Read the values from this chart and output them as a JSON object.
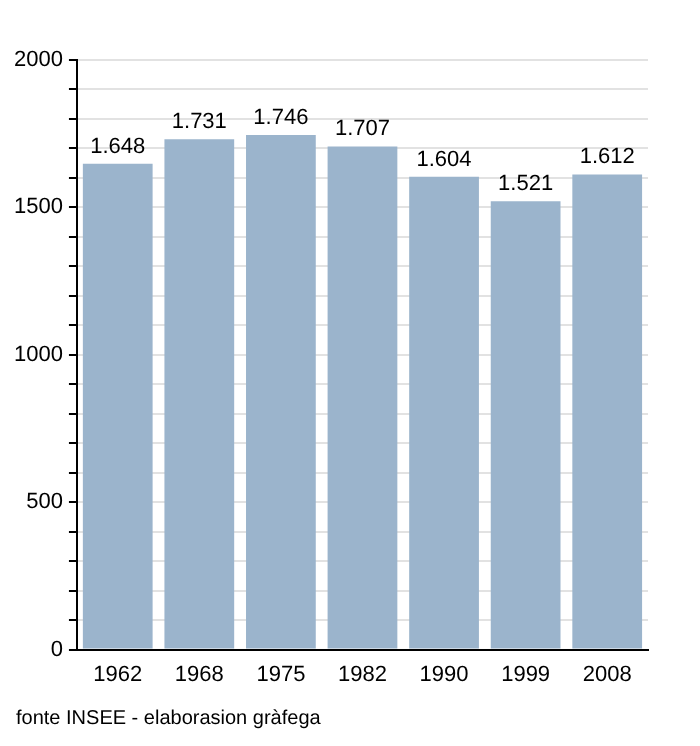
{
  "chart_data": {
    "type": "bar",
    "categories": [
      "1962",
      "1968",
      "1975",
      "1982",
      "1990",
      "1999",
      "2008"
    ],
    "values": [
      1648,
      1731,
      1746,
      1707,
      1604,
      1521,
      1612
    ],
    "value_labels": [
      "1.648",
      "1.731",
      "1.746",
      "1.707",
      "1.604",
      "1.521",
      "1.612"
    ],
    "color": "#9bb4cc",
    "ylim": [
      0,
      2000
    ],
    "yticks": [
      0,
      {
        "value": 100,
        "label": null
      },
      {
        "value": 200,
        "label": null
      },
      {
        "value": 300,
        "label": null
      },
      {
        "value": 400,
        "label": null
      },
      500,
      {
        "value": 600,
        "label": null
      },
      {
        "value": 700,
        "label": null
      },
      {
        "value": 800,
        "label": null
      },
      {
        "value": 900,
        "label": null
      },
      1000,
      {
        "value": 1100,
        "label": null
      },
      {
        "value": 1200,
        "label": null
      },
      {
        "value": 1300,
        "label": null
      },
      {
        "value": 1400,
        "label": null
      },
      1500,
      {
        "value": 1600,
        "label": null
      },
      {
        "value": 1700,
        "label": null
      },
      {
        "value": 1800,
        "label": null
      },
      {
        "value": 1900,
        "label": null
      },
      2000
    ],
    "grid": "y",
    "legend": false,
    "annotations": [
      "fonte INSEE - elaborasion gràfega"
    ]
  }
}
